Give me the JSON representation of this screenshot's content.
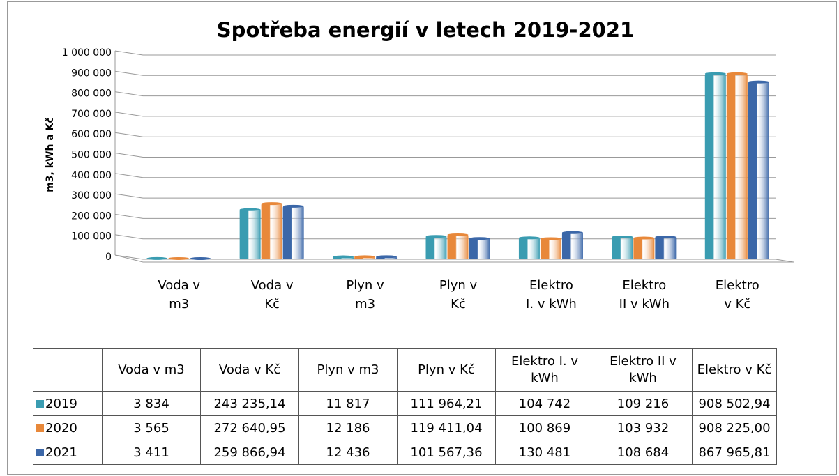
{
  "chart_data": {
    "type": "bar",
    "title": "Spotřeba energií v letech 2019-2021",
    "y_label": "m3, kWh a Kč",
    "categories": [
      "Voda v m3",
      "Voda v Kč",
      "Plyn v m3",
      "Plyn v Kč",
      "Elektro I. v kWh",
      "Elektro II v kWh",
      "Elektro v Kč"
    ],
    "series": [
      {
        "name": "2019",
        "color": "#3a9cb1",
        "values": [
          3834,
          243235.14,
          11817,
          111964.21,
          104742,
          109216,
          908502.94
        ],
        "value_labels": [
          "3 834",
          "243 235,14",
          "11 817",
          "111 964,21",
          "104 742",
          "109 216",
          "908 502,94"
        ]
      },
      {
        "name": "2020",
        "color": "#e8883a",
        "values": [
          3565,
          272640.95,
          12186,
          119411.04,
          100869,
          103932,
          908225.0
        ],
        "value_labels": [
          "3 565",
          "272 640,95",
          "12 186",
          "119 411,04",
          "100 869",
          "103 932",
          "908 225,00"
        ]
      },
      {
        "name": "2021",
        "color": "#3b67a8",
        "values": [
          3411,
          259866.94,
          12436,
          101567.36,
          130481,
          108684,
          867965.81
        ],
        "value_labels": [
          "3 411",
          "259 866,94",
          "12 436",
          "101 567,36",
          "130 481",
          "108 684",
          "867 965,81"
        ]
      }
    ],
    "ylim": [
      0,
      1000000
    ],
    "yticks": [
      0,
      {
        "value": 100000,
        "label": "100 000"
      },
      {
        "value": 200000,
        "label": "200 000"
      },
      {
        "value": 300000,
        "label": "300 000"
      },
      {
        "value": 400000,
        "label": "400 000"
      },
      {
        "value": 500000,
        "label": "500 000"
      },
      {
        "value": 600000,
        "label": "600 000"
      },
      {
        "value": 700000,
        "label": "700 000"
      },
      {
        "value": 800000,
        "label": "800 000"
      },
      {
        "value": 900000,
        "label": "900 000"
      },
      {
        "value": 1000000,
        "label": "1 000 000"
      }
    ],
    "grid": true
  }
}
